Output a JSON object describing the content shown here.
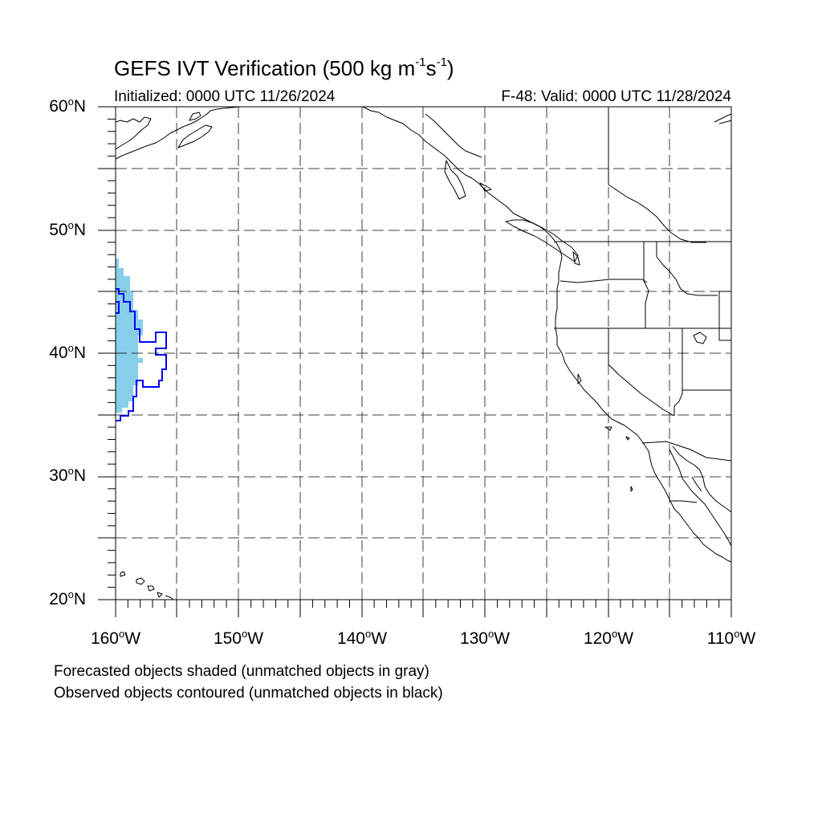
{
  "title": {
    "main": "GEFS IVT Verification (500 kg m",
    "exp1": "-1",
    "mid": "s",
    "exp2": "-1",
    "close": ")"
  },
  "initialized": "Initialized: 0000 UTC 11/26/2024",
  "valid": "F-48: Valid: 0000 UTC 11/28/2024",
  "lat_labels": [
    {
      "value": "60",
      "hemi": "N"
    },
    {
      "value": "50",
      "hemi": "N"
    },
    {
      "value": "40",
      "hemi": "N"
    },
    {
      "value": "30",
      "hemi": "N"
    },
    {
      "value": "20",
      "hemi": "N"
    }
  ],
  "lon_labels": [
    {
      "value": "160",
      "hemi": "W"
    },
    {
      "value": "150",
      "hemi": "W"
    },
    {
      "value": "140",
      "hemi": "W"
    },
    {
      "value": "130",
      "hemi": "W"
    },
    {
      "value": "120",
      "hemi": "W"
    },
    {
      "value": "110",
      "hemi": "W"
    }
  ],
  "degree_symbol": "o",
  "footnote_1": "Forecasted objects shaded (unmatched objects in gray)",
  "footnote_2": "Observed objects contoured (unmatched objects in black)",
  "map_extent": {
    "lon": [
      -160,
      -110
    ],
    "lat": [
      20,
      60
    ],
    "grid_step_deg": 5
  },
  "colors": {
    "forecast_fill": "#87ceeb",
    "observed_contour": "#0000ff",
    "coastline": "#000000",
    "grid": "#000000"
  }
}
